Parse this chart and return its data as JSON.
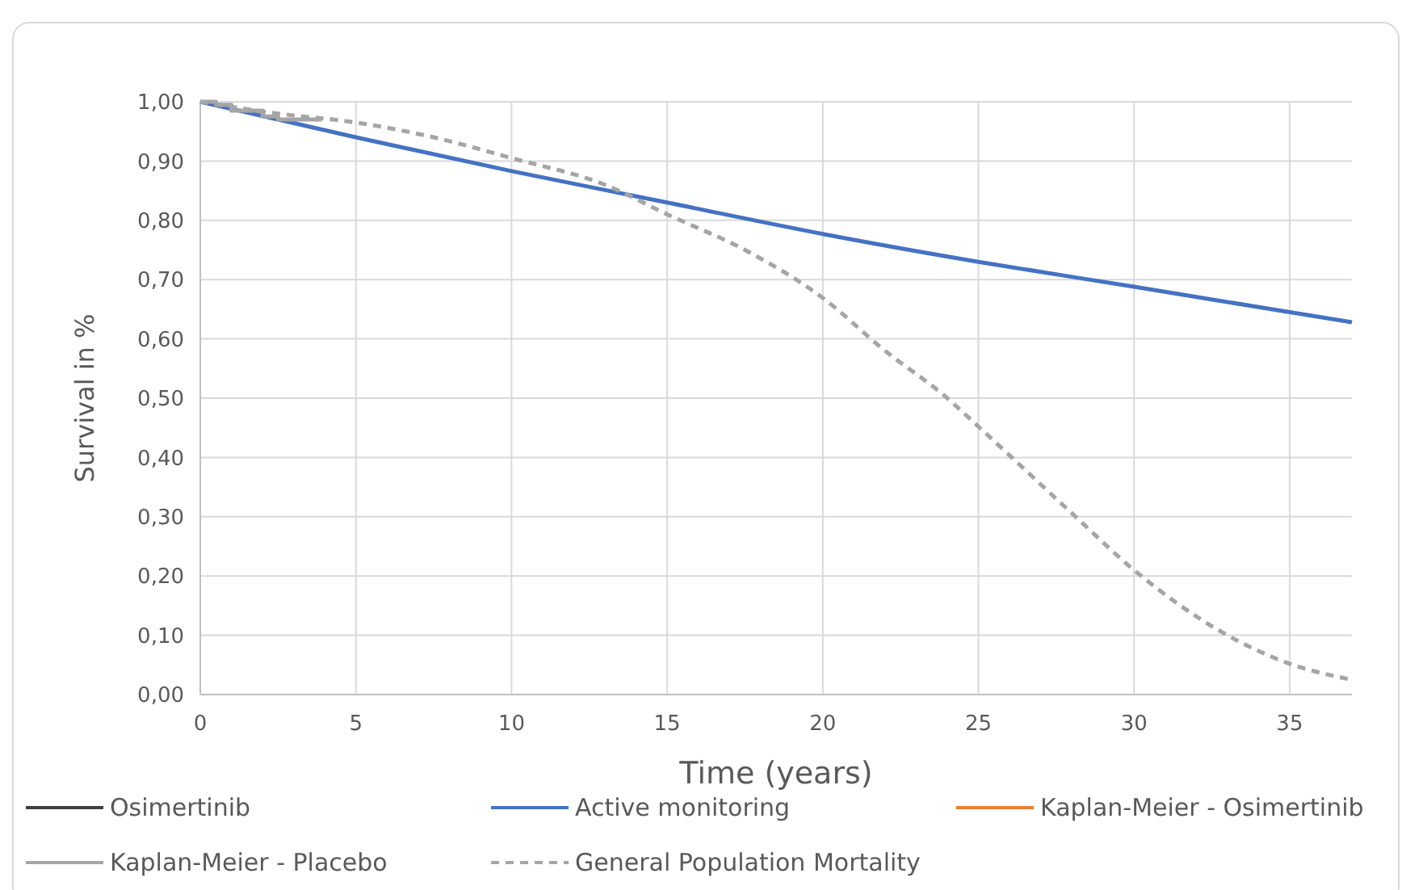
{
  "chart_data": {
    "type": "line",
    "xlabel": "Time (years)",
    "ylabel": "Survival in %",
    "xlim": [
      0,
      37
    ],
    "xticks": [
      0,
      5,
      10,
      15,
      20,
      25,
      30,
      35
    ],
    "ylim": [
      0,
      1
    ],
    "yticks": [
      {
        "value": 0,
        "label": "0,00"
      },
      {
        "value": 0.1,
        "label": "0,10"
      },
      {
        "value": 0.2,
        "label": "0,20"
      },
      {
        "value": 0.3,
        "label": "0,30"
      },
      {
        "value": 0.4,
        "label": "0,40"
      },
      {
        "value": 0.5,
        "label": "0,50"
      },
      {
        "value": 0.6,
        "label": "0,60"
      },
      {
        "value": 0.7,
        "label": "0,70"
      },
      {
        "value": 0.8,
        "label": "0,80"
      },
      {
        "value": 0.9,
        "label": "0,90"
      },
      {
        "value": 1,
        "label": "1,00"
      }
    ],
    "grid": true,
    "legend": "bottom",
    "series": [
      {
        "name": "Osimertinib",
        "color": "#404040"
      },
      {
        "name": "Active monitoring",
        "color": "#4472c4",
        "x": [
          0,
          5,
          10,
          15,
          20,
          25,
          30,
          35,
          37
        ],
        "values": [
          1.0,
          0.94,
          0.883,
          0.83,
          0.777,
          0.73,
          0.688,
          0.645,
          0.628
        ]
      },
      {
        "name": "Kaplan-Meier - Osimertinib",
        "color": "#ed7d31"
      },
      {
        "type": "step",
        "name": "Kaplan-Meier - Placebo",
        "color": "#a5a5a5",
        "x": [
          0,
          0.5,
          1,
          1.5,
          2,
          2.5,
          3,
          3.9
        ],
        "values": [
          1.0,
          0.995,
          0.985,
          0.985,
          0.975,
          0.97,
          0.97,
          0.97
        ]
      },
      {
        "name": "General Population Mortality",
        "color": "#a5a5a5",
        "line_style": "dashed",
        "x": [
          0,
          2.5,
          5,
          7.5,
          10,
          13,
          15,
          17.5,
          20,
          22,
          24,
          25,
          28,
          30,
          32.8,
          35,
          37
        ],
        "values": [
          1.0,
          0.98,
          0.965,
          0.94,
          0.905,
          0.86,
          0.81,
          0.75,
          0.669,
          0.58,
          0.5,
          0.452,
          0.306,
          0.21,
          0.106,
          0.052,
          0.025
        ]
      }
    ]
  }
}
